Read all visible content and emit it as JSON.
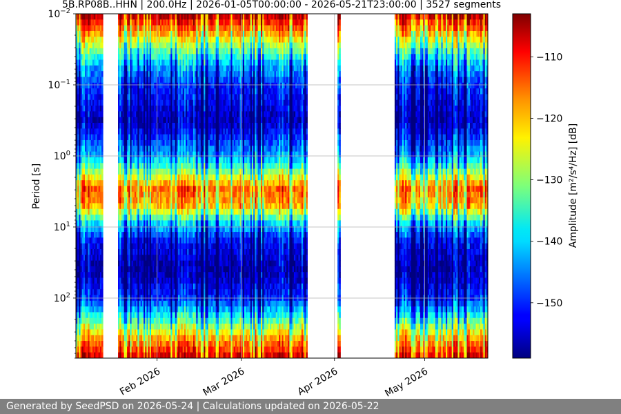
{
  "chart_data": {
    "type": "heatmap",
    "title": "5B.RP08B..HHN | 200.0Hz | 2026-01-05T00:00:00 - 2026-05-21T23:00:00 | 3527 segments",
    "xlabel": "",
    "ylabel": "Period [s]",
    "colorbar_label": "Amplitude [m²/s⁴/Hz] [dB]",
    "x_start": "2026-01-05",
    "x_end": "2026-05-21",
    "x_ticks": [
      {
        "date": "2026-02-01",
        "label": "Feb 2026"
      },
      {
        "date": "2026-03-01",
        "label": "Mar 2026"
      },
      {
        "date": "2026-04-01",
        "label": "Apr 2026"
      },
      {
        "date": "2026-05-01",
        "label": "May 2026"
      }
    ],
    "y_scale": "log",
    "y_inverted": true,
    "ylim": [
      0.01,
      700
    ],
    "y_ticks": [
      {
        "value": 0.01,
        "base": "10",
        "exp": "−2"
      },
      {
        "value": 0.1,
        "base": "10",
        "exp": "−1"
      },
      {
        "value": 1,
        "base": "10",
        "exp": "0"
      },
      {
        "value": 10,
        "base": "10",
        "exp": "1"
      },
      {
        "value": 100,
        "base": "10",
        "exp": "2"
      }
    ],
    "colorbar": {
      "min": -159,
      "max": -103,
      "ticks": [
        -110,
        -120,
        -130,
        -140,
        -150
      ],
      "tick_labels": [
        "−110",
        "−120",
        "−130",
        "−140",
        "−150"
      ],
      "colormap": "jet"
    },
    "grid": true,
    "gaps": [
      [
        "2026-01-14",
        "2026-01-19"
      ],
      [
        "2026-03-23",
        "2026-04-02"
      ],
      [
        "2026-04-03",
        "2026-04-21"
      ]
    ],
    "columns_approx": "vertical day-by-day PSD stripes between gaps; high amplitude (red) near 0.01–0.02 s and near 2–6 s (microseism band), low amplitude (blue) near 0.1–0.5 s and 10–100 s, rising to red/yellow near 300–700 s"
  },
  "footer": {
    "text": "Generated by SeedPSD on 2026-05-24 | Calculations updated on 2026-05-22"
  }
}
